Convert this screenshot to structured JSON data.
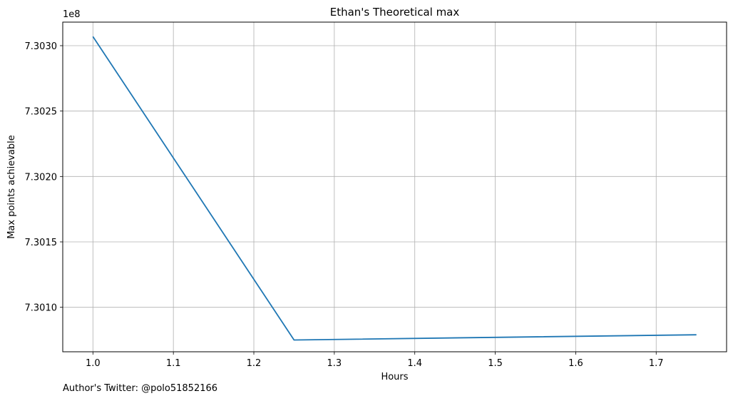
{
  "chart_data": {
    "type": "line",
    "title": "Ethan's Theoretical max",
    "xlabel": "Hours",
    "ylabel": "Max points achievable",
    "offset_label": "1e8",
    "x_ticks": [
      "1.0",
      "1.1",
      "1.2",
      "1.3",
      "1.4",
      "1.5",
      "1.6",
      "1.7"
    ],
    "y_ticks": [
      "7.3010",
      "7.3015",
      "7.3020",
      "7.3025",
      "7.3030"
    ],
    "xlim": [
      0.9625,
      1.7875
    ],
    "ylim": [
      7.30066,
      7.30318
    ],
    "grid": true,
    "line_color": "#1f77b4",
    "series": [
      {
        "x": [
          1.0,
          1.25,
          1.5,
          1.75
        ],
        "y": [
          7.30307,
          7.30075,
          7.30077,
          7.30079
        ]
      }
    ]
  },
  "footer": {
    "note": "Author's Twitter: @polo51852166"
  }
}
